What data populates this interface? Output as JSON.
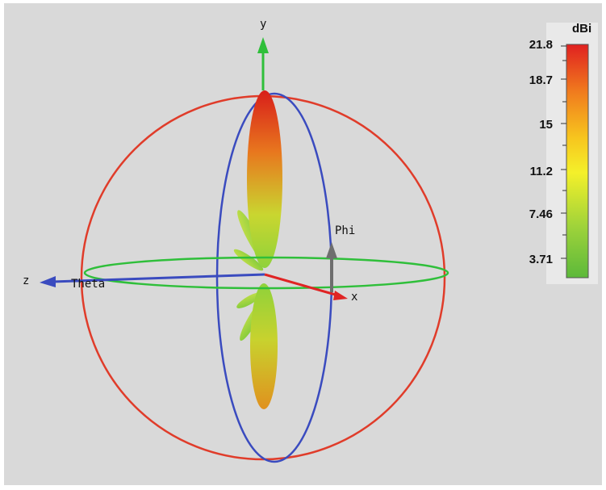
{
  "axes": {
    "y_label": "y",
    "z_label": "z",
    "x_label": "x",
    "theta_label": "Theta",
    "phi_label": "Phi",
    "colors": {
      "y": "#2fbf3a",
      "z": "#3a4bbf",
      "x": "#e02424",
      "phi": "#6e6e6e"
    }
  },
  "legend": {
    "unit": "dBi",
    "ticks": [
      "21.8",
      "18.7",
      "15",
      "11.2",
      "7.46",
      "3.71"
    ],
    "gradient_colors": [
      "#e02020",
      "#f07a1e",
      "#f7c51e",
      "#f4f02a",
      "#9fd33a",
      "#5cb93a"
    ]
  },
  "rings": {
    "outer_sphere_color": "#e03c2a",
    "vertical_ring_color": "#3a4bbf",
    "horizontal_ring_color": "#2fbf3a"
  }
}
